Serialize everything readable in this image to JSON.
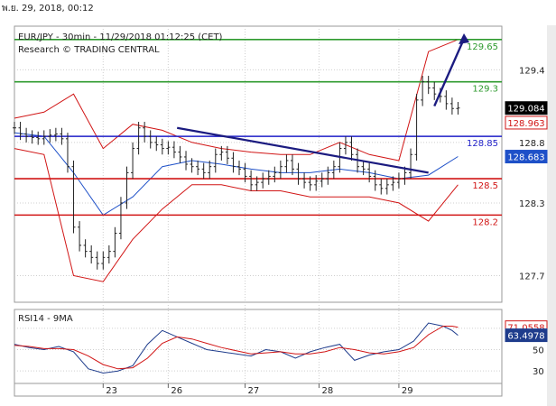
{
  "timestamp": "พ.ย. 29, 2018, 00:12",
  "chart_data": [
    {
      "type": "line",
      "title": "EUR/JPY - 30min - 11/29/2018 01:12:25 (CET)",
      "subtitle": "Research © TRADING CENTRAL",
      "x_ticks": [
        "23",
        "26",
        "27",
        "28",
        "29"
      ],
      "y_ticks": [
        127.7,
        128.3,
        128.8,
        129.4
      ],
      "ylim": [
        127.48,
        129.76
      ],
      "levels": [
        {
          "value": 129.65,
          "label": "129.65",
          "color": "#2e9a2e"
        },
        {
          "value": 129.3,
          "label": "129.3",
          "color": "#2e9a2e"
        },
        {
          "value": 128.85,
          "label": "128.85",
          "color": "#1e1ec8"
        },
        {
          "value": 128.5,
          "label": "128.5",
          "color": "#d11515"
        },
        {
          "value": 128.2,
          "label": "128.2",
          "color": "#d11515"
        }
      ],
      "price_tags": [
        {
          "value": 129.084,
          "label": "129.084",
          "bg": "#000000",
          "fg": "#ffffff"
        },
        {
          "value": 128.963,
          "label": "128.963",
          "bg": "#ffffff",
          "fg": "#d11515"
        },
        {
          "value": 128.683,
          "label": "128.683",
          "bg": "#1e50c8",
          "fg": "#ffffff"
        }
      ],
      "series": [
        {
          "name": "price",
          "color": "#222222",
          "x": [
            0,
            2,
            4,
            6,
            8,
            10,
            12,
            14,
            16,
            18,
            20,
            22,
            24,
            26,
            28,
            30,
            32,
            34,
            36,
            38,
            40,
            42,
            44,
            46,
            48,
            50,
            52,
            54,
            56,
            58,
            60,
            62,
            64,
            66,
            68,
            70,
            72,
            74,
            76,
            78,
            80,
            82,
            84,
            86,
            88,
            90,
            92,
            94,
            96,
            98,
            100,
            102,
            104,
            106,
            108,
            110,
            112,
            114,
            116,
            118,
            120,
            122,
            124,
            126,
            128,
            130,
            132,
            134,
            136,
            138,
            140,
            142,
            144,
            146,
            148,
            150
          ],
          "values": [
            128.92,
            128.87,
            128.85,
            128.84,
            128.83,
            128.85,
            128.86,
            128.87,
            128.83,
            128.6,
            128.1,
            127.95,
            127.9,
            127.85,
            127.8,
            127.85,
            127.9,
            128.05,
            128.3,
            128.55,
            128.75,
            128.92,
            128.85,
            128.8,
            128.78,
            128.75,
            128.76,
            128.72,
            128.68,
            128.62,
            128.6,
            128.58,
            128.55,
            128.6,
            128.7,
            128.72,
            128.67,
            128.6,
            128.58,
            128.52,
            128.45,
            128.47,
            128.5,
            128.52,
            128.55,
            128.6,
            128.65,
            128.58,
            128.5,
            128.47,
            128.45,
            128.48,
            128.5,
            128.55,
            128.6,
            128.75,
            128.8,
            128.7,
            128.6,
            128.58,
            128.52,
            128.45,
            128.42,
            128.45,
            128.47,
            128.5,
            128.55,
            128.7,
            129.15,
            129.3,
            129.25,
            129.2,
            129.18,
            129.12,
            129.08,
            129.084
          ]
        },
        {
          "name": "bollinger-mid",
          "color": "#1e50c8",
          "x": [
            0,
            10,
            20,
            30,
            40,
            50,
            60,
            70,
            80,
            90,
            100,
            110,
            120,
            130,
            140,
            150
          ],
          "values": [
            128.88,
            128.85,
            128.55,
            128.2,
            128.35,
            128.6,
            128.65,
            128.62,
            128.58,
            128.55,
            128.55,
            128.58,
            128.55,
            128.5,
            128.53,
            128.683
          ]
        },
        {
          "name": "bollinger-upper",
          "color": "#d11515",
          "x": [
            0,
            10,
            20,
            30,
            40,
            50,
            60,
            70,
            80,
            90,
            100,
            110,
            120,
            130,
            140,
            150
          ],
          "values": [
            129.0,
            129.05,
            129.2,
            128.75,
            128.95,
            128.9,
            128.8,
            128.75,
            128.72,
            128.7,
            128.7,
            128.8,
            128.7,
            128.65,
            129.55,
            129.65
          ]
        },
        {
          "name": "bollinger-lower",
          "color": "#d11515",
          "x": [
            0,
            10,
            20,
            30,
            40,
            50,
            60,
            70,
            80,
            90,
            100,
            110,
            120,
            130,
            140,
            150
          ],
          "values": [
            128.75,
            128.7,
            127.7,
            127.65,
            128.0,
            128.25,
            128.45,
            128.45,
            128.4,
            128.4,
            128.35,
            128.35,
            128.35,
            128.3,
            128.15,
            128.45
          ]
        }
      ],
      "trendline": {
        "from": [
          55,
          128.92
        ],
        "to": [
          140,
          128.55
        ],
        "color": "#1b1b80"
      },
      "arrow": {
        "from": [
          142,
          129.1
        ],
        "to": [
          152,
          129.7
        ],
        "color": "#1b1b80"
      }
    },
    {
      "type": "line",
      "title": "RSI14 - 9MA",
      "y_ticks": [
        70,
        50,
        30
      ],
      "ylim": [
        20,
        86
      ],
      "price_tags": [
        {
          "value": 71.0558,
          "label": "71.0558",
          "bg": "#ffffff",
          "fg": "#d11515"
        },
        {
          "value": 63.4978,
          "label": "63.4978",
          "bg": "#1e3c8c",
          "fg": "#ffffff"
        }
      ],
      "series": [
        {
          "name": "RSI14",
          "color": "#1e3c8c",
          "x": [
            0,
            5,
            10,
            15,
            20,
            25,
            30,
            35,
            40,
            45,
            50,
            55,
            60,
            65,
            70,
            75,
            80,
            85,
            90,
            95,
            100,
            105,
            110,
            115,
            120,
            125,
            130,
            135,
            140,
            145,
            148,
            150
          ],
          "values": [
            55,
            52,
            50,
            53,
            48,
            32,
            28,
            30,
            35,
            55,
            68,
            62,
            56,
            50,
            48,
            46,
            44,
            50,
            48,
            42,
            48,
            52,
            55,
            40,
            45,
            48,
            50,
            58,
            75,
            72,
            68,
            63.5
          ]
        },
        {
          "name": "9MA",
          "color": "#d11515",
          "x": [
            0,
            5,
            10,
            15,
            20,
            25,
            30,
            35,
            40,
            45,
            50,
            55,
            60,
            65,
            70,
            75,
            80,
            85,
            90,
            95,
            100,
            105,
            110,
            115,
            120,
            125,
            130,
            135,
            140,
            145,
            148,
            150
          ],
          "values": [
            54,
            53,
            51,
            51,
            50,
            44,
            36,
            32,
            33,
            42,
            56,
            62,
            60,
            56,
            52,
            49,
            46,
            47,
            48,
            46,
            46,
            48,
            52,
            50,
            47,
            46,
            48,
            52,
            64,
            72,
            72,
            71.06
          ]
        }
      ]
    }
  ]
}
